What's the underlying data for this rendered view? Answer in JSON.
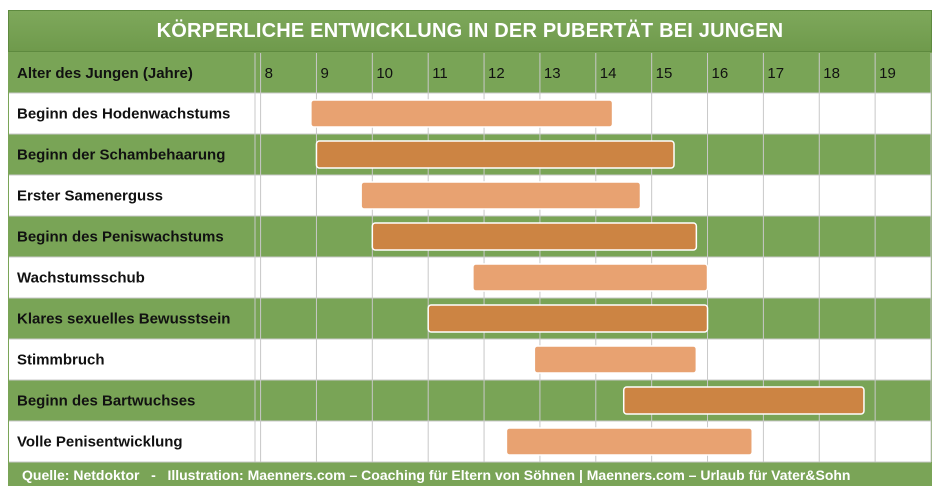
{
  "chart_data": {
    "type": "gantt",
    "title": "KÖRPERLICHE ENTWICKLUNG IN DER PUBERTÄT BEI JUNGEN",
    "header_label": "Alter des Jungen (Jahre)",
    "x_ticks": [
      "8",
      "9",
      "10",
      "11",
      "12",
      "13",
      "14",
      "15",
      "16",
      "17",
      "18",
      "19"
    ],
    "xlim": [
      7.9,
      20.0
    ],
    "rows": [
      {
        "label": "Beginn des Hodenwachstums",
        "start": 8.9,
        "end": 14.3
      },
      {
        "label": "Beginn der Schambehaarung",
        "start": 9.0,
        "end": 15.4
      },
      {
        "label": "Erster Samenerguss",
        "start": 9.8,
        "end": 14.8
      },
      {
        "label": "Beginn des Peniswachstums",
        "start": 10.0,
        "end": 15.8
      },
      {
        "label": "Wachstumsschub",
        "start": 11.8,
        "end": 16.0
      },
      {
        "label": "Klares sexuelles Bewusstsein",
        "start": 11.0,
        "end": 16.0
      },
      {
        "label": "Stimmbruch",
        "start": 12.9,
        "end": 15.8
      },
      {
        "label": "Beginn des Bartwuchses",
        "start": 14.5,
        "end": 18.8
      },
      {
        "label": "Volle Penisentwicklung",
        "start": 12.4,
        "end": 16.8
      }
    ],
    "colors": {
      "green_row": "#79a456",
      "white_row": "#ffffff",
      "bar_light": "#e8a271",
      "bar_dark": "#cc8443",
      "grid_line": "#c8c8c8"
    },
    "footer": "Quelle: Netdoktor   -   Illustration: Maenners.com – Coaching für Eltern von Söhnen | Maenners.com – Urlaub für Vater&Sohn"
  }
}
